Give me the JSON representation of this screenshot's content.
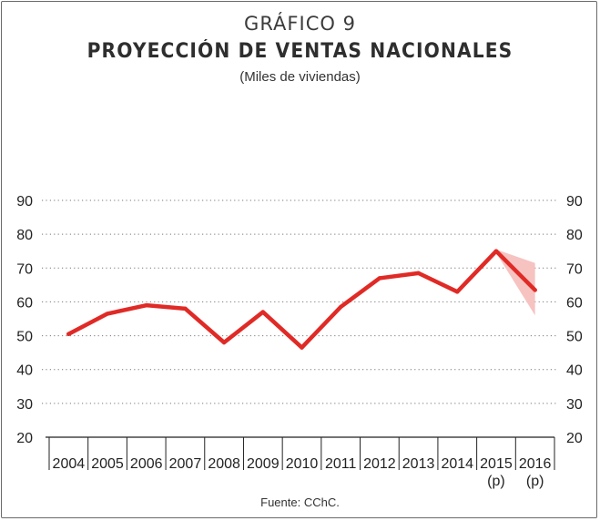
{
  "header": {
    "kicker": "GRÁFICO 9",
    "title": "PROYECCIÓN DE VENTAS NACIONALES",
    "subtitle": "(Miles de viviendas)"
  },
  "footer": {
    "source": "Fuente: CChC."
  },
  "colors": {
    "line": "#e02a26",
    "band": "#f6c3c1",
    "grid": "#777777",
    "axis": "#222222"
  },
  "chart_data": {
    "type": "line",
    "title": "PROYECCIÓN DE VENTAS NACIONALES",
    "subtitle": "(Miles de viviendas)",
    "categories": [
      [
        "2004"
      ],
      [
        "2005"
      ],
      [
        "2006"
      ],
      [
        "2007"
      ],
      [
        "2008"
      ],
      [
        "2009"
      ],
      [
        "2010"
      ],
      [
        "2011"
      ],
      [
        "2012"
      ],
      [
        "2013"
      ],
      [
        "2014"
      ],
      [
        "2015",
        "(p)"
      ],
      [
        "2016",
        "(p)"
      ]
    ],
    "values": [
      50.5,
      56.5,
      59,
      58,
      48,
      57,
      46.5,
      58.5,
      67,
      68.5,
      63,
      75,
      63.5
    ],
    "band": {
      "from_index": 11,
      "upper": [
        75.5,
        71.5
      ],
      "lower": [
        74.5,
        56
      ]
    },
    "ylim": [
      20,
      90
    ],
    "yticks": [
      20,
      30,
      40,
      50,
      60,
      70,
      80,
      90
    ],
    "y_axis_sides": "both",
    "grid": "dotted horizontal"
  }
}
